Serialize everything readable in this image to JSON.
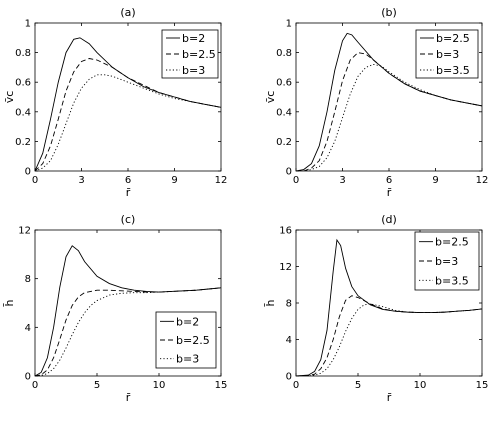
{
  "chart_data": [
    {
      "type": "line",
      "title": "(a)",
      "xlabel": "r̄",
      "ylabel": "v̄c",
      "xlim": [
        0,
        12
      ],
      "ylim": [
        0,
        1
      ],
      "xticks": [
        0,
        3,
        6,
        9,
        12
      ],
      "xtick_labels": [
        "0",
        "3",
        "6",
        "9",
        "12"
      ],
      "yticks": [
        0,
        0.2,
        0.4,
        0.6,
        0.8,
        1
      ],
      "ytick_labels": [
        "0",
        "0.2",
        "0.4",
        "0.6",
        "0.8",
        "1"
      ],
      "legend_position": "top-right",
      "grid": false,
      "series": [
        {
          "name": "b=2",
          "style": "solid",
          "x": [
            0,
            0.5,
            1,
            1.5,
            2,
            2.5,
            2.9,
            3.5,
            4,
            5,
            6,
            7,
            8,
            9,
            10,
            11,
            12
          ],
          "y": [
            0,
            0.12,
            0.35,
            0.6,
            0.8,
            0.89,
            0.9,
            0.86,
            0.8,
            0.7,
            0.63,
            0.57,
            0.53,
            0.5,
            0.47,
            0.45,
            0.43
          ]
        },
        {
          "name": "b=2.5",
          "style": "dashed",
          "x": [
            0,
            0.5,
            1,
            1.5,
            2,
            2.5,
            3,
            3.5,
            4,
            5,
            6,
            7,
            8,
            9,
            10,
            11,
            12
          ],
          "y": [
            0,
            0.05,
            0.17,
            0.35,
            0.54,
            0.67,
            0.74,
            0.76,
            0.75,
            0.7,
            0.63,
            0.58,
            0.53,
            0.5,
            0.47,
            0.45,
            0.43
          ]
        },
        {
          "name": "b=3",
          "style": "dotted",
          "x": [
            0,
            0.5,
            1,
            1.5,
            2,
            2.5,
            3,
            3.5,
            4,
            4.5,
            5,
            6,
            7,
            8,
            9,
            10,
            11,
            12
          ],
          "y": [
            0,
            0.02,
            0.07,
            0.18,
            0.32,
            0.46,
            0.56,
            0.62,
            0.65,
            0.65,
            0.64,
            0.6,
            0.56,
            0.52,
            0.49,
            0.47,
            0.45,
            0.43
          ]
        }
      ]
    },
    {
      "type": "line",
      "title": "(b)",
      "xlabel": "r̄",
      "ylabel": "v̄c",
      "xlim": [
        0,
        12
      ],
      "ylim": [
        0,
        1
      ],
      "xticks": [
        0,
        3,
        6,
        9,
        12
      ],
      "xtick_labels": [
        "0",
        "3",
        "6",
        "9",
        "12"
      ],
      "yticks": [
        0,
        0.2,
        0.4,
        0.6,
        0.8,
        1
      ],
      "ytick_labels": [
        "0",
        "0.2",
        "0.4",
        "0.6",
        "0.8",
        "1"
      ],
      "legend_position": "top-right",
      "grid": false,
      "series": [
        {
          "name": "b=2.5",
          "style": "solid",
          "x": [
            0,
            0.5,
            1,
            1.5,
            2,
            2.5,
            3,
            3.3,
            3.6,
            4,
            5,
            6,
            7,
            8,
            9,
            10,
            11,
            12
          ],
          "y": [
            0,
            0.01,
            0.05,
            0.17,
            0.4,
            0.68,
            0.88,
            0.93,
            0.92,
            0.87,
            0.75,
            0.66,
            0.59,
            0.54,
            0.51,
            0.48,
            0.46,
            0.44
          ]
        },
        {
          "name": "b=3",
          "style": "dashed",
          "x": [
            0,
            0.5,
            1,
            1.5,
            2,
            2.5,
            3,
            3.5,
            4,
            4.5,
            5,
            6,
            7,
            8,
            9,
            10,
            11,
            12
          ],
          "y": [
            0,
            0,
            0.02,
            0.07,
            0.2,
            0.4,
            0.61,
            0.75,
            0.8,
            0.79,
            0.75,
            0.66,
            0.59,
            0.54,
            0.51,
            0.48,
            0.46,
            0.44
          ]
        },
        {
          "name": "b=3.5",
          "style": "dotted",
          "x": [
            0,
            0.5,
            1,
            1.5,
            2,
            2.5,
            3,
            3.5,
            4,
            4.5,
            5,
            5.5,
            6,
            7,
            8,
            9,
            10,
            11,
            12
          ],
          "y": [
            0,
            0,
            0.01,
            0.03,
            0.09,
            0.2,
            0.36,
            0.52,
            0.64,
            0.7,
            0.72,
            0.71,
            0.67,
            0.6,
            0.55,
            0.51,
            0.48,
            0.46,
            0.44
          ]
        }
      ]
    },
    {
      "type": "line",
      "title": "(c)",
      "xlabel": "r̄",
      "ylabel": "h̄",
      "xlim": [
        0,
        15
      ],
      "ylim": [
        0,
        12
      ],
      "xticks": [
        0,
        5,
        10,
        15
      ],
      "xtick_labels": [
        "0",
        "5",
        "10",
        "15"
      ],
      "yticks": [
        0,
        4,
        8,
        12
      ],
      "ytick_labels": [
        "0",
        "4",
        "8",
        "12"
      ],
      "legend_position": "bottom-right",
      "grid": false,
      "series": [
        {
          "name": "b=2",
          "style": "solid",
          "x": [
            0,
            0.5,
            1,
            1.5,
            2,
            2.5,
            3,
            3.5,
            4,
            5,
            6,
            7,
            8,
            9,
            10,
            11,
            12,
            13,
            14,
            15
          ],
          "y": [
            0,
            0.3,
            1.5,
            4.0,
            7.3,
            9.8,
            10.7,
            10.3,
            9.4,
            8.2,
            7.6,
            7.25,
            7.05,
            6.95,
            6.9,
            6.95,
            7.0,
            7.05,
            7.15,
            7.25
          ]
        },
        {
          "name": "b=2.5",
          "style": "dashed",
          "x": [
            0,
            0.5,
            1,
            1.5,
            2,
            2.5,
            3,
            3.5,
            4,
            5,
            6,
            7,
            8,
            9,
            10,
            11,
            12,
            13,
            14,
            15
          ],
          "y": [
            0,
            0.1,
            0.5,
            1.5,
            3.0,
            4.6,
            5.8,
            6.5,
            6.85,
            7.05,
            7.05,
            7.0,
            6.95,
            6.9,
            6.9,
            6.95,
            7.0,
            7.05,
            7.15,
            7.25
          ]
        },
        {
          "name": "b=3",
          "style": "dotted",
          "x": [
            0,
            0.5,
            1,
            1.5,
            2,
            2.5,
            3,
            3.5,
            4,
            4.5,
            5,
            6,
            7,
            8,
            9,
            10,
            11,
            12,
            13,
            14,
            15
          ],
          "y": [
            0,
            0.05,
            0.2,
            0.6,
            1.3,
            2.3,
            3.4,
            4.4,
            5.2,
            5.8,
            6.2,
            6.65,
            6.8,
            6.85,
            6.85,
            6.9,
            6.95,
            7.0,
            7.05,
            7.15,
            7.25
          ]
        }
      ]
    },
    {
      "type": "line",
      "title": "(d)",
      "xlabel": "r̄",
      "ylabel": "h̄",
      "xlim": [
        0,
        15
      ],
      "ylim": [
        0,
        16
      ],
      "xticks": [
        0,
        5,
        10,
        15
      ],
      "xtick_labels": [
        "0",
        "5",
        "10",
        "15"
      ],
      "yticks": [
        0,
        4,
        8,
        12,
        16
      ],
      "ytick_labels": [
        "0",
        "4",
        "8",
        "12",
        "16"
      ],
      "legend_position": "top-right",
      "grid": false,
      "series": [
        {
          "name": "b=2.5",
          "style": "solid",
          "x": [
            0,
            1,
            1.5,
            2,
            2.5,
            3,
            3.3,
            3.6,
            4,
            4.5,
            5,
            6,
            7,
            8,
            9,
            10,
            11,
            12,
            13,
            14,
            15
          ],
          "y": [
            0,
            0.1,
            0.5,
            1.8,
            5.0,
            11.5,
            14.9,
            14.3,
            11.8,
            9.8,
            8.8,
            7.8,
            7.3,
            7.1,
            7.0,
            6.95,
            6.95,
            7.0,
            7.1,
            7.2,
            7.35
          ]
        },
        {
          "name": "b=3",
          "style": "dashed",
          "x": [
            0,
            1,
            1.5,
            2,
            2.5,
            3,
            3.5,
            4,
            4.5,
            5,
            6,
            7,
            8,
            9,
            10,
            11,
            12,
            13,
            14,
            15
          ],
          "y": [
            0,
            0.05,
            0.2,
            0.8,
            2.0,
            4.0,
            6.5,
            8.3,
            8.8,
            8.6,
            7.9,
            7.35,
            7.1,
            7.0,
            6.95,
            6.95,
            7.0,
            7.1,
            7.2,
            7.35
          ]
        },
        {
          "name": "b=3.5",
          "style": "dotted",
          "x": [
            0,
            1,
            1.5,
            2,
            2.5,
            3,
            3.5,
            4,
            4.5,
            5,
            5.5,
            6,
            7,
            8,
            9,
            10,
            11,
            12,
            13,
            14,
            15
          ],
          "y": [
            0,
            0.02,
            0.1,
            0.3,
            0.8,
            1.8,
            3.2,
            4.9,
            6.3,
            7.3,
            7.8,
            7.9,
            7.6,
            7.2,
            7.0,
            6.95,
            6.95,
            7.0,
            7.1,
            7.2,
            7.35
          ]
        }
      ]
    }
  ]
}
